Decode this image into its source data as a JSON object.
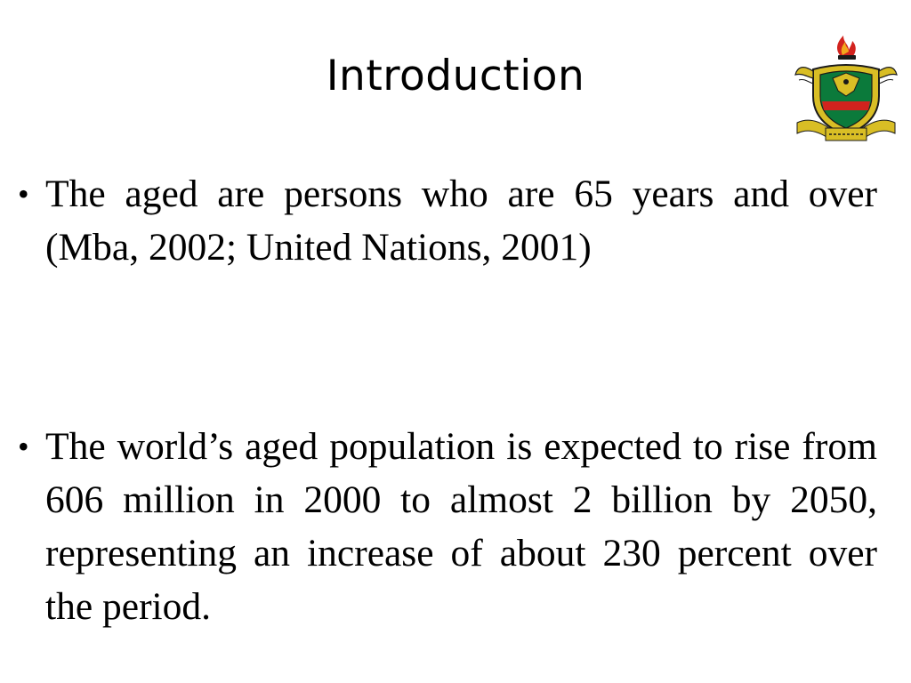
{
  "slide": {
    "title": "Introduction",
    "logo": {
      "icon": "university-crest-icon",
      "motto_text": "NYANSA NE NTENI · W. J. SANE MU · NYANSA BOMU",
      "colors": {
        "gold": "#D9BE25",
        "green": "#0B7A3B",
        "red": "#D2231E",
        "black": "#1A1A1A"
      }
    },
    "bullets": [
      {
        "marker": "•",
        "text": "The aged are persons who are 65 years and over (Mba, 2002; United Nations, 2001)"
      },
      {
        "marker": "•",
        "text": "The world’s aged population is expected to rise from 606 million in 2000 to almost 2 billion by 2050, representing an increase of about 230 percent over the period."
      }
    ]
  }
}
